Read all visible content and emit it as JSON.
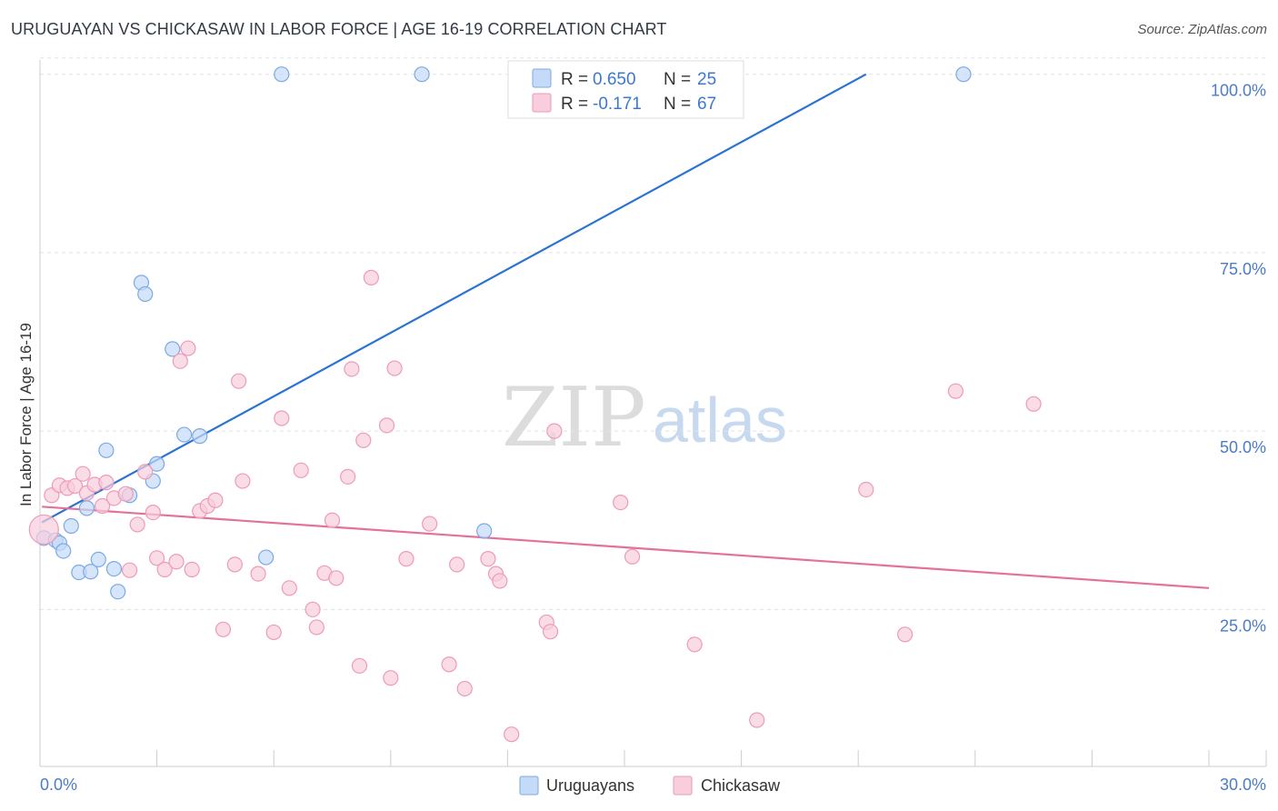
{
  "header": {
    "title": "URUGUAYAN VS CHICKASAW IN LABOR FORCE | AGE 16-19 CORRELATION CHART",
    "source": "Source: ZipAtlas.com"
  },
  "watermark": {
    "zip": "ZIP",
    "atlas": "atlas"
  },
  "chart_data": {
    "type": "scatter",
    "title": "URUGUAYAN VS CHICKASAW IN LABOR FORCE | AGE 16-19 CORRELATION CHART",
    "xlabel": "",
    "ylabel": "In Labor Force | Age 16-19",
    "xlim": [
      0,
      30
    ],
    "ylim": [
      3,
      102
    ],
    "x_tick_labels": [
      "0.0%",
      "30.0%"
    ],
    "y_ticks": [
      25,
      50,
      75,
      100
    ],
    "y_tick_labels": [
      "25.0%",
      "50.0%",
      "75.0%",
      "100.0%"
    ],
    "legend_top": [
      {
        "r_label": "R =",
        "r_value": "0.650",
        "n_label": "N =",
        "n_value": "25"
      },
      {
        "r_label": "R =",
        "r_value": "-0.171",
        "n_label": "N =",
        "n_value": "67"
      }
    ],
    "series": [
      {
        "name": "Uruguayans",
        "color": "#7aaae6",
        "fill": "#c5daf6",
        "line_color": "#2a73d1",
        "trend": {
          "x": [
            0.05,
            21.2
          ],
          "y": [
            37.2,
            100.0
          ]
        },
        "points": [
          [
            0.1,
            35.0
          ],
          [
            0.4,
            34.7
          ],
          [
            0.5,
            34.3
          ],
          [
            0.6,
            33.2
          ],
          [
            0.8,
            36.7
          ],
          [
            1.0,
            30.2
          ],
          [
            1.2,
            39.2
          ],
          [
            1.3,
            30.3
          ],
          [
            1.5,
            32.0
          ],
          [
            1.7,
            47.3
          ],
          [
            1.9,
            30.7
          ],
          [
            2.0,
            27.5
          ],
          [
            2.3,
            41.0
          ],
          [
            2.6,
            70.8
          ],
          [
            2.7,
            69.2
          ],
          [
            2.9,
            43.0
          ],
          [
            3.0,
            45.4
          ],
          [
            3.4,
            61.5
          ],
          [
            3.7,
            49.5
          ],
          [
            4.1,
            49.3
          ],
          [
            5.8,
            32.3
          ],
          [
            6.2,
            100.0
          ],
          [
            9.8,
            100.0
          ],
          [
            11.4,
            36.0
          ],
          [
            23.7,
            100.0
          ]
        ]
      },
      {
        "name": "Chickasaw",
        "color": "#ee9ab8",
        "fill": "#f8cddd",
        "line_color": "#e5709a",
        "trend": {
          "x": [
            0.05,
            30.0
          ],
          "y": [
            39.4,
            28.0
          ]
        },
        "points": [
          [
            0.1,
            36.2
          ],
          [
            0.3,
            41.0
          ],
          [
            0.5,
            42.4
          ],
          [
            0.7,
            42.0
          ],
          [
            0.9,
            42.3
          ],
          [
            1.1,
            44.0
          ],
          [
            1.2,
            41.3
          ],
          [
            1.4,
            42.5
          ],
          [
            1.6,
            39.5
          ],
          [
            1.7,
            42.8
          ],
          [
            1.9,
            40.6
          ],
          [
            2.2,
            41.2
          ],
          [
            2.3,
            30.5
          ],
          [
            2.5,
            36.9
          ],
          [
            2.7,
            44.3
          ],
          [
            2.9,
            38.6
          ],
          [
            3.0,
            32.2
          ],
          [
            3.2,
            30.6
          ],
          [
            3.5,
            31.7
          ],
          [
            3.6,
            59.8
          ],
          [
            3.8,
            61.6
          ],
          [
            3.9,
            30.6
          ],
          [
            4.1,
            38.8
          ],
          [
            4.3,
            39.5
          ],
          [
            4.5,
            40.3
          ],
          [
            4.7,
            22.2
          ],
          [
            5.0,
            31.3
          ],
          [
            5.1,
            57.0
          ],
          [
            5.2,
            43.0
          ],
          [
            5.6,
            30.0
          ],
          [
            6.0,
            21.8
          ],
          [
            6.2,
            51.8
          ],
          [
            6.4,
            28.0
          ],
          [
            6.7,
            44.5
          ],
          [
            7.0,
            25.0
          ],
          [
            7.1,
            22.5
          ],
          [
            7.3,
            30.1
          ],
          [
            7.5,
            37.5
          ],
          [
            7.6,
            29.4
          ],
          [
            7.9,
            43.6
          ],
          [
            8.0,
            58.7
          ],
          [
            8.2,
            17.1
          ],
          [
            8.3,
            48.7
          ],
          [
            8.5,
            71.5
          ],
          [
            8.9,
            50.8
          ],
          [
            9.1,
            58.8
          ],
          [
            9.0,
            15.4
          ],
          [
            9.4,
            32.1
          ],
          [
            10.0,
            37.0
          ],
          [
            10.5,
            17.3
          ],
          [
            10.7,
            31.3
          ],
          [
            10.9,
            13.9
          ],
          [
            11.5,
            32.1
          ],
          [
            11.7,
            30.0
          ],
          [
            11.8,
            29.0
          ],
          [
            12.1,
            7.5
          ],
          [
            13.0,
            23.2
          ],
          [
            13.1,
            21.9
          ],
          [
            13.2,
            50.0
          ],
          [
            14.9,
            40.0
          ],
          [
            15.2,
            32.4
          ],
          [
            16.8,
            20.1
          ],
          [
            18.4,
            9.5
          ],
          [
            21.2,
            41.8
          ],
          [
            22.2,
            21.5
          ],
          [
            23.5,
            55.6
          ],
          [
            25.5,
            53.8
          ]
        ]
      }
    ]
  }
}
